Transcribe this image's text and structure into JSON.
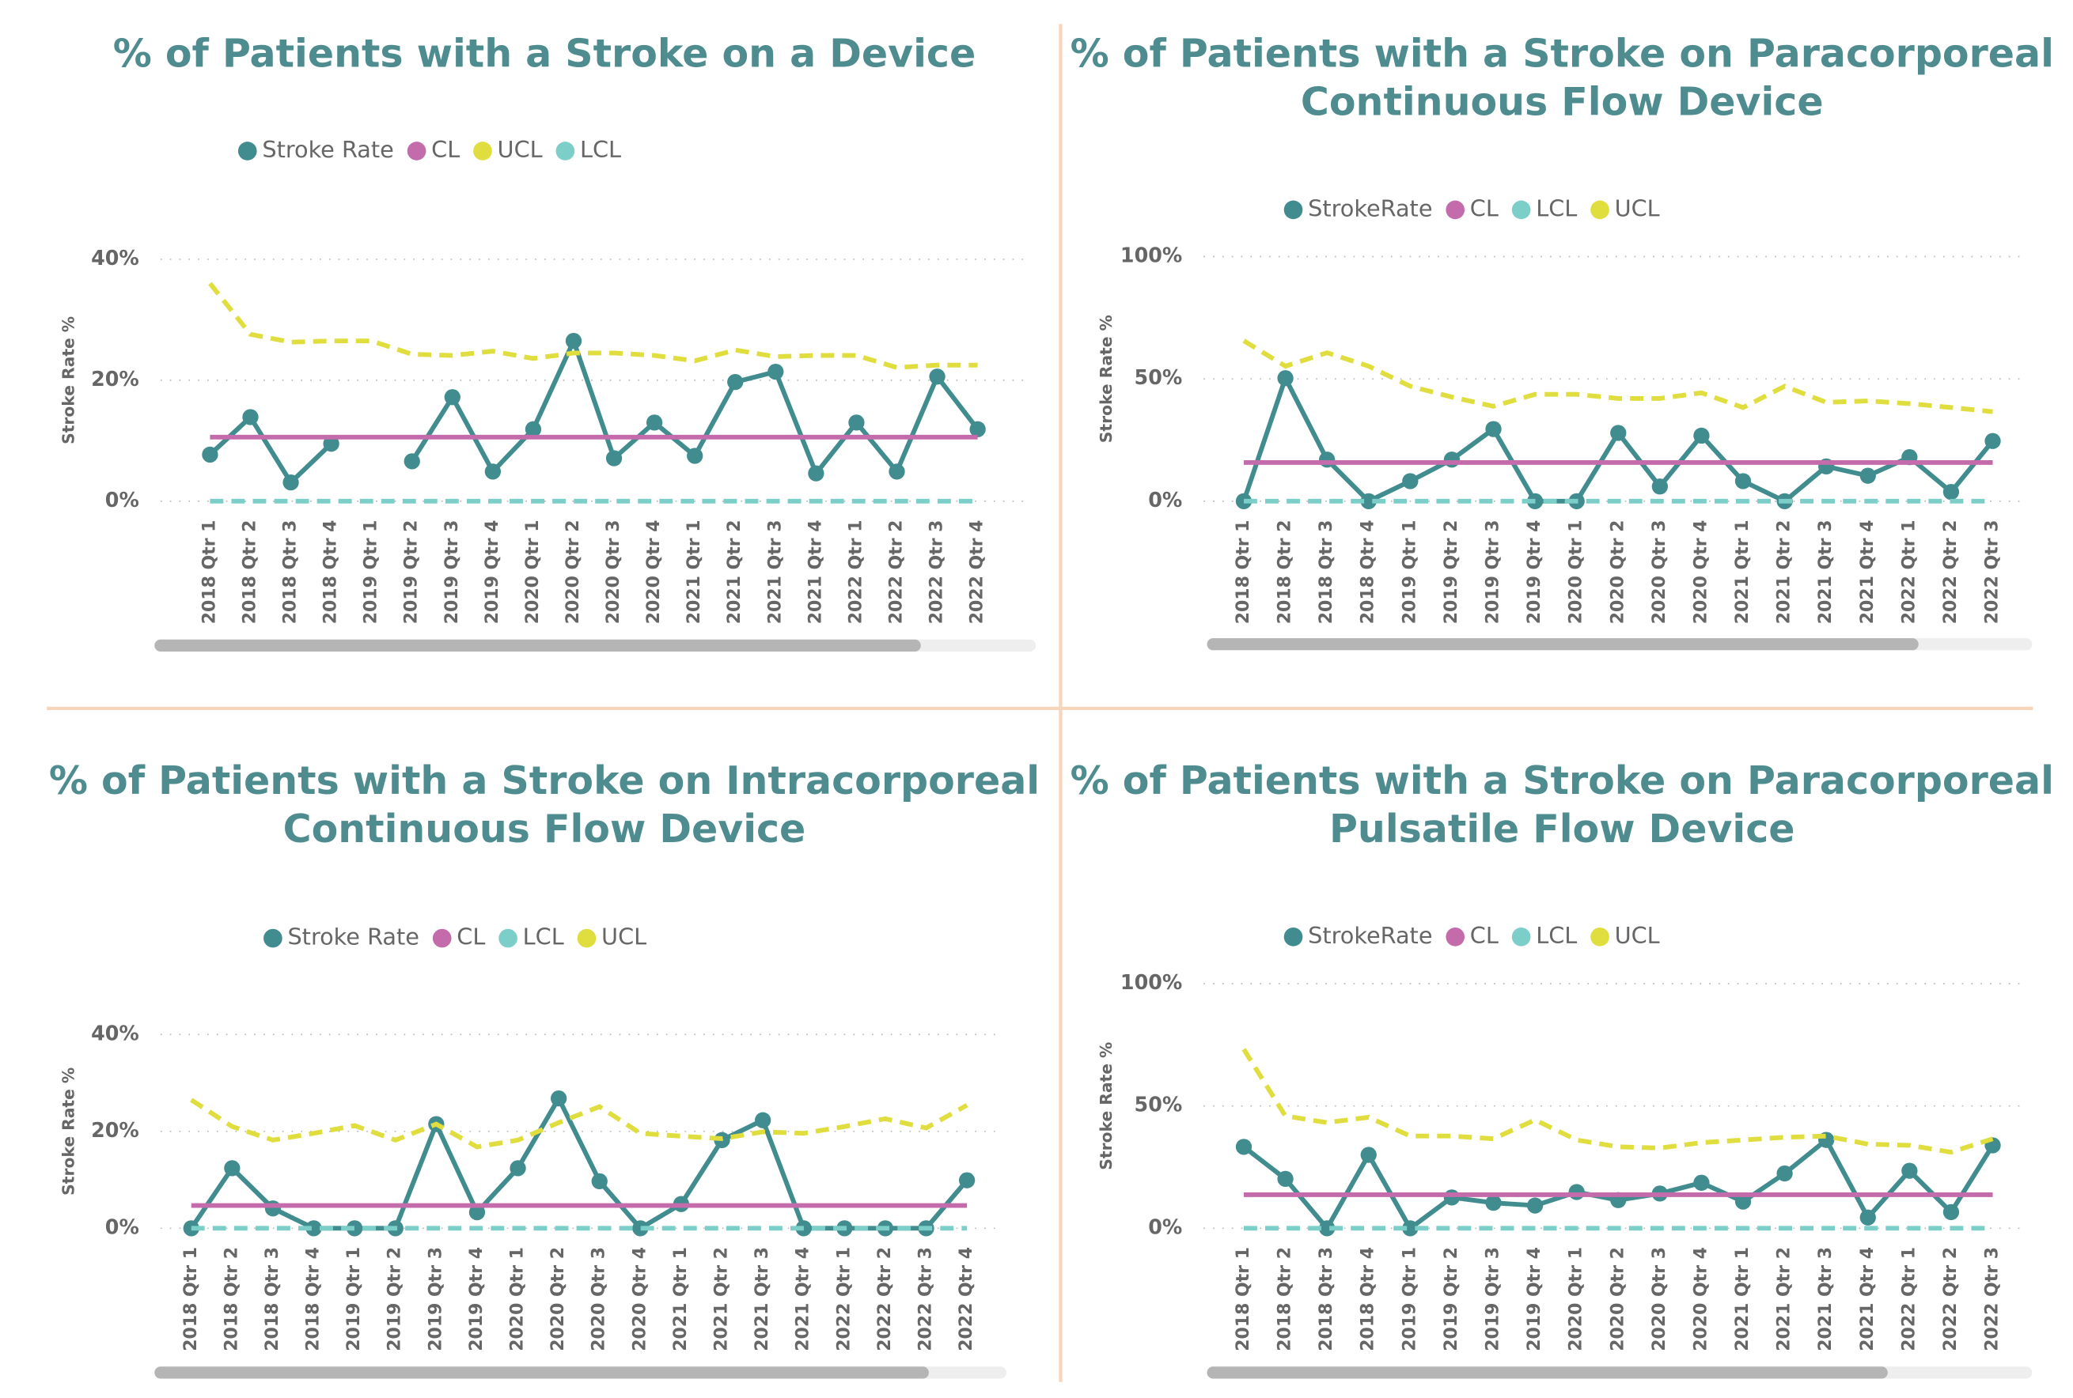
{
  "chart_data": [
    {
      "type": "line",
      "title": "% of Patients with a Stroke on a Device",
      "y_label": "Stroke Rate %",
      "categories": [
        "2018 Qtr 1",
        "2018 Qtr 2",
        "2018 Qtr 3",
        "2018 Qtr 4",
        "2019 Qtr 1",
        "2019 Qtr 2",
        "2019 Qtr 3",
        "2019 Qtr 4",
        "2020 Qtr 1",
        "2020 Qtr 2",
        "2020 Qtr 3",
        "2020 Qtr 4",
        "2021 Qtr 1",
        "2021 Qtr 2",
        "2021 Qtr 3",
        "2021 Qtr 4",
        "2022 Qtr 1",
        "2022 Qtr 2",
        "2022 Qtr 3",
        "2022 Qtr 4"
      ],
      "series": [
        {
          "name": "Stroke Rate",
          "color": "#418c8e",
          "marker": true,
          "dash": false,
          "values": [
            7.7,
            13.9,
            3.1,
            9.5,
            null,
            6.6,
            17.2,
            4.9,
            11.9,
            26.5,
            7.1,
            13.0,
            7.5,
            19.7,
            21.4,
            4.6,
            13.0,
            4.9,
            20.6,
            11.9
          ]
        },
        {
          "name": "CL",
          "color": "#c46bac",
          "marker": false,
          "dash": false,
          "values": [
            10.6,
            10.6,
            10.6,
            10.6,
            10.6,
            10.6,
            10.6,
            10.6,
            10.6,
            10.6,
            10.6,
            10.6,
            10.6,
            10.6,
            10.6,
            10.6,
            10.6,
            10.6,
            10.6,
            10.6
          ]
        },
        {
          "name": "UCL",
          "color": "#e0dd3f",
          "marker": false,
          "dash": true,
          "values": [
            36,
            27.6,
            26.3,
            26.5,
            26.5,
            24.3,
            24.1,
            24.8,
            23.6,
            24.5,
            24.5,
            24.1,
            23.2,
            25,
            23.9,
            24.1,
            24.1,
            22.1,
            22.5,
            22.5
          ]
        },
        {
          "name": "LCL",
          "color": "#7ccfc8",
          "marker": false,
          "dash": true,
          "values": [
            0,
            0,
            0,
            0,
            0,
            0,
            0,
            0,
            0,
            0,
            0,
            0,
            0,
            0,
            0,
            0,
            0,
            0,
            0,
            0
          ]
        }
      ],
      "ylim": [
        0,
        40
      ],
      "yticks": [
        {
          "value": 0,
          "label": "0%"
        },
        {
          "value": 20,
          "label": "20%"
        },
        {
          "value": 40,
          "label": "40%"
        }
      ],
      "grid": true
    },
    {
      "type": "line",
      "title": "% of Patients with a Stroke on Paracorporeal Continuous Flow Device",
      "y_label": "Stroke Rate %",
      "categories": [
        "2018 Qtr 1",
        "2018 Qtr 2",
        "2018 Qtr 3",
        "2018 Qtr 4",
        "2019 Qtr 1",
        "2019 Qtr 2",
        "2019 Qtr 3",
        "2019 Qtr 4",
        "2020 Qtr 1",
        "2020 Qtr 2",
        "2020 Qtr 3",
        "2020 Qtr 4",
        "2021 Qtr 1",
        "2021 Qtr 2",
        "2021 Qtr 3",
        "2021 Qtr 4",
        "2022 Qtr 1",
        "2022 Qtr 2",
        "2022 Qtr 3"
      ],
      "series": [
        {
          "name": "StrokeRate",
          "color": "#418c8e",
          "marker": true,
          "dash": false,
          "values": [
            0,
            50.3,
            17,
            0,
            8.2,
            17,
            29.5,
            0,
            0,
            27.9,
            6,
            26.8,
            8.2,
            0,
            14.2,
            10.4,
            18,
            3.8,
            24.6
          ]
        },
        {
          "name": "CL",
          "color": "#c46bac",
          "marker": false,
          "dash": false,
          "values": [
            15.8,
            15.8,
            15.8,
            15.8,
            15.8,
            15.8,
            15.8,
            15.8,
            15.8,
            15.8,
            15.8,
            15.8,
            15.8,
            15.8,
            15.8,
            15.8,
            15.8,
            15.8,
            15.8
          ]
        },
        {
          "name": "LCL",
          "color": "#7ccfc8",
          "marker": false,
          "dash": true,
          "values": [
            0,
            0,
            0,
            0,
            0,
            0,
            0,
            0,
            0,
            0,
            0,
            0,
            0,
            0,
            0,
            0,
            0,
            0,
            0
          ]
        },
        {
          "name": "UCL",
          "color": "#e0dd3f",
          "marker": false,
          "dash": true,
          "values": [
            65.6,
            55.2,
            60.7,
            55.2,
            47,
            42.6,
            38.8,
            43.7,
            43.7,
            42,
            42,
            44.3,
            38.3,
            47,
            40.4,
            41,
            39.9,
            38.3,
            36.6
          ]
        }
      ],
      "ylim": [
        0,
        100
      ],
      "yticks": [
        {
          "value": 0,
          "label": "0%"
        },
        {
          "value": 50,
          "label": "50%"
        },
        {
          "value": 100,
          "label": "100%"
        }
      ],
      "grid": true
    },
    {
      "type": "line",
      "title": "% of Patients with a Stroke on Intracorporeal Continuous Flow Device",
      "y_label": "Stroke Rate %",
      "categories": [
        "2018 Qtr 1",
        "2018 Qtr 2",
        "2018 Qtr 3",
        "2018 Qtr 4",
        "2019 Qtr 1",
        "2019 Qtr 2",
        "2019 Qtr 3",
        "2019 Qtr 4",
        "2020 Qtr 1",
        "2020 Qtr 2",
        "2020 Qtr 3",
        "2020 Qtr 4",
        "2021 Qtr 1",
        "2021 Qtr 2",
        "2021 Qtr 3",
        "2021 Qtr 4",
        "2022 Qtr 1",
        "2022 Qtr 2",
        "2022 Qtr 3",
        "2022 Qtr 4"
      ],
      "series": [
        {
          "name": "Stroke Rate",
          "color": "#418c8e",
          "marker": true,
          "dash": false,
          "values": [
            0,
            12.4,
            4.1,
            0,
            0,
            0,
            21.5,
            3.3,
            12.4,
            26.8,
            9.7,
            0,
            5,
            18.2,
            22.3,
            0,
            0,
            0,
            0,
            9.9
          ]
        },
        {
          "name": "CL",
          "color": "#c46bac",
          "marker": false,
          "dash": false,
          "values": [
            4.7,
            4.7,
            4.7,
            4.7,
            4.7,
            4.7,
            4.7,
            4.7,
            4.7,
            4.7,
            4.7,
            4.7,
            4.7,
            4.7,
            4.7,
            4.7,
            4.7,
            4.7,
            4.7,
            4.7
          ]
        },
        {
          "name": "LCL",
          "color": "#7ccfc8",
          "marker": false,
          "dash": true,
          "values": [
            0,
            0,
            0,
            0,
            0,
            0,
            0,
            0,
            0,
            0,
            0,
            0,
            0,
            0,
            0,
            0,
            0,
            0,
            0,
            0
          ]
        },
        {
          "name": "UCL",
          "color": "#e0dd3f",
          "marker": false,
          "dash": true,
          "values": [
            26.5,
            21,
            18.2,
            19.6,
            21.2,
            18.2,
            21.5,
            16.8,
            18.2,
            21.8,
            25.1,
            19.6,
            19,
            18.5,
            19.9,
            19.6,
            21,
            22.6,
            20.7,
            25.4
          ]
        }
      ],
      "ylim": [
        0,
        40
      ],
      "yticks": [
        {
          "value": 0,
          "label": "0%"
        },
        {
          "value": 20,
          "label": "20%"
        },
        {
          "value": 40,
          "label": "40%"
        }
      ],
      "grid": true
    },
    {
      "type": "line",
      "title": "% of Patients with a Stroke on Paracorporeal Pulsatile Flow Device",
      "y_label": "Stroke Rate %",
      "categories": [
        "2018 Qtr 1",
        "2018 Qtr 2",
        "2018 Qtr 3",
        "2018 Qtr 4",
        "2019 Qtr 1",
        "2019 Qtr 2",
        "2019 Qtr 3",
        "2019 Qtr 4",
        "2020 Qtr 1",
        "2020 Qtr 2",
        "2020 Qtr 3",
        "2020 Qtr 4",
        "2021 Qtr 1",
        "2021 Qtr 2",
        "2021 Qtr 3",
        "2021 Qtr 4",
        "2022 Qtr 1",
        "2022 Qtr 2",
        "2022 Qtr 3"
      ],
      "series": [
        {
          "name": "StrokeRate",
          "color": "#418c8e",
          "marker": true,
          "dash": false,
          "values": [
            33.3,
            20.2,
            0,
            30,
            0,
            12.6,
            10.4,
            9.3,
            14.8,
            11.5,
            14.2,
            18.6,
            10.9,
            22.4,
            36.1,
            4.4,
            23.5,
            6.6,
            33.9
          ]
        },
        {
          "name": "CL",
          "color": "#c46bac",
          "marker": false,
          "dash": false,
          "values": [
            13.7,
            13.7,
            13.7,
            13.7,
            13.7,
            13.7,
            13.7,
            13.7,
            13.7,
            13.7,
            13.7,
            13.7,
            13.7,
            13.7,
            13.7,
            13.7,
            13.7,
            13.7,
            13.7
          ]
        },
        {
          "name": "LCL",
          "color": "#7ccfc8",
          "marker": false,
          "dash": true,
          "values": [
            0,
            0,
            0,
            0,
            0,
            0,
            0,
            0,
            0,
            0,
            0,
            0,
            0,
            0,
            0,
            0,
            0,
            0,
            0
          ]
        },
        {
          "name": "UCL",
          "color": "#e0dd3f",
          "marker": false,
          "dash": true,
          "values": [
            73.2,
            45.9,
            43.2,
            45.4,
            37.7,
            37.7,
            36.6,
            44.3,
            36.1,
            33.3,
            32.8,
            35,
            36.1,
            37.2,
            37.7,
            34.4,
            33.9,
            31.1,
            36.6
          ]
        }
      ],
      "ylim": [
        0,
        100
      ],
      "yticks": [
        {
          "value": 0,
          "label": "0%"
        },
        {
          "value": 50,
          "label": "50%"
        },
        {
          "value": 100,
          "label": "100%"
        }
      ],
      "grid": true
    }
  ]
}
